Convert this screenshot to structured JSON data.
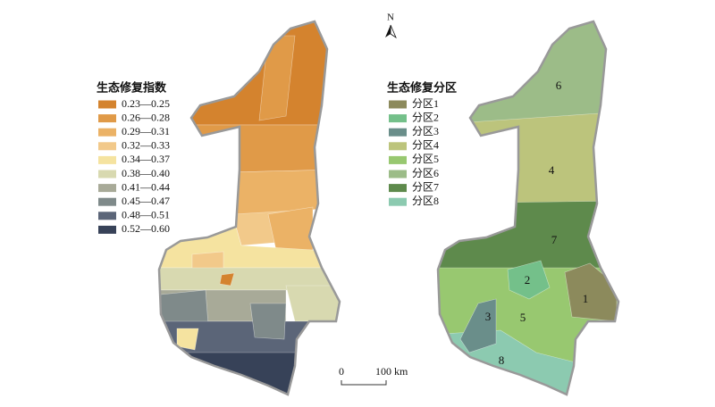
{
  "left_map": {
    "legend": {
      "title": "生态修复指数",
      "items": [
        {
          "label": "0.23—0.25",
          "color": "#d4832e"
        },
        {
          "label": "0.26—0.28",
          "color": "#e09a48"
        },
        {
          "label": "0.29—0.31",
          "color": "#ebb266"
        },
        {
          "label": "0.32—0.33",
          "color": "#f2c98a"
        },
        {
          "label": "0.34—0.37",
          "color": "#f5e3a0"
        },
        {
          "label": "0.38—0.40",
          "color": "#d8d9b0"
        },
        {
          "label": "0.41—0.44",
          "color": "#a8aa98"
        },
        {
          "label": "0.45—0.47",
          "color": "#7f8a8a"
        },
        {
          "label": "0.48—0.51",
          "color": "#5b6578"
        },
        {
          "label": "0.52—0.60",
          "color": "#374258"
        }
      ]
    }
  },
  "right_map": {
    "legend": {
      "title": "生态修复分区",
      "items": [
        {
          "label": "分区1",
          "color": "#8c8a5c"
        },
        {
          "label": "分区2",
          "color": "#74c08a"
        },
        {
          "label": "分区3",
          "color": "#6a8e8a"
        },
        {
          "label": "分区4",
          "color": "#bcc47c"
        },
        {
          "label": "分区5",
          "color": "#98c870"
        },
        {
          "label": "分区6",
          "color": "#9cbc88"
        },
        {
          "label": "分区7",
          "color": "#5e8a4c"
        },
        {
          "label": "分区8",
          "color": "#8ccab0"
        }
      ]
    },
    "zone_labels": [
      "1",
      "2",
      "3",
      "4",
      "5",
      "6",
      "7",
      "8"
    ]
  },
  "north": "N",
  "scale_bar": {
    "start": "0",
    "end": "100 km"
  }
}
